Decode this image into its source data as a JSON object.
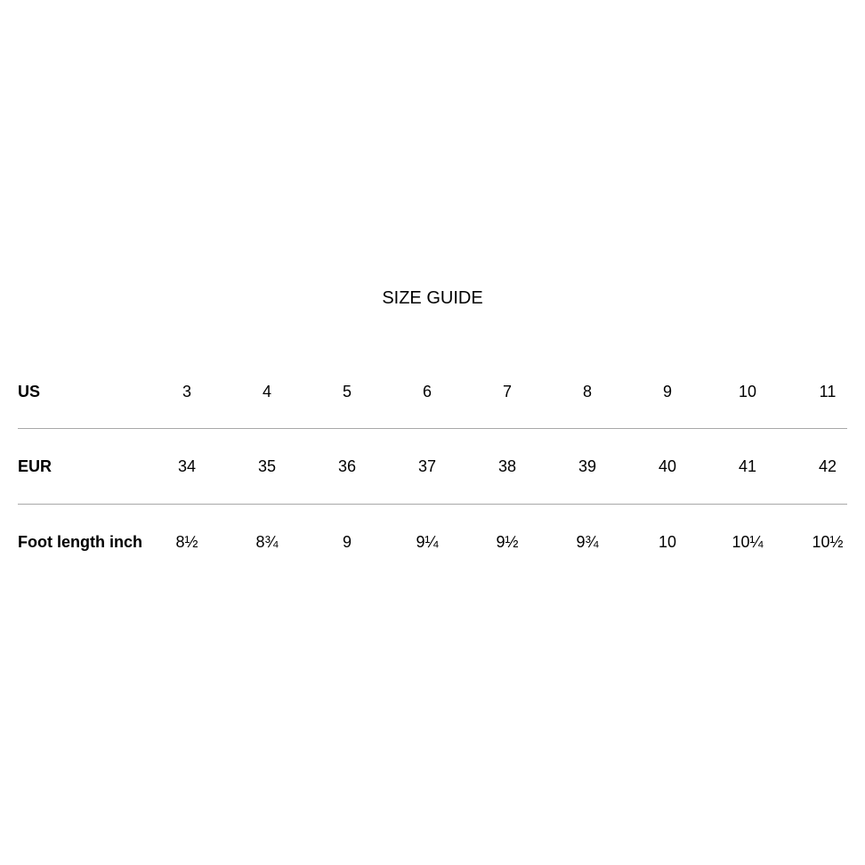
{
  "title": "SIZE GUIDE",
  "rows": [
    {
      "label": "US",
      "values": [
        "3",
        "4",
        "5",
        "6",
        "7",
        "8",
        "9",
        "10",
        "11"
      ]
    },
    {
      "label": "EUR",
      "values": [
        "34",
        "35",
        "36",
        "37",
        "38",
        "39",
        "40",
        "41",
        "42"
      ]
    },
    {
      "label": "Foot length inch",
      "values": [
        "8½",
        "8¾",
        "9",
        "9¼",
        "9½",
        "9¾",
        "10",
        "10¼",
        "10½"
      ]
    }
  ]
}
